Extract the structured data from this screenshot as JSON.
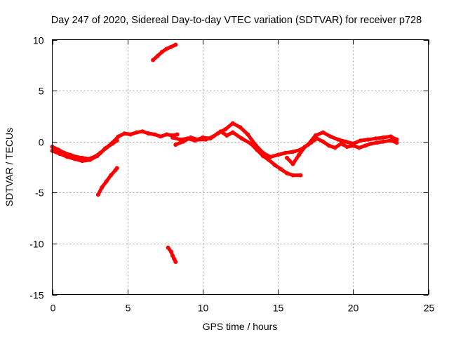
{
  "chart_data": {
    "type": "line",
    "title": "Day 247 of 2020, Sidereal Day-to-day VTEC variation (SDTVAR) for receiver p728",
    "xlabel": "GPS time / hours",
    "ylabel": "SDTVAR / TECUs",
    "xlim": [
      0,
      25
    ],
    "ylim": [
      -15,
      10
    ],
    "xticks": [
      0,
      5,
      10,
      15,
      20,
      25
    ],
    "yticks": [
      -15,
      -10,
      -5,
      0,
      5,
      10
    ],
    "xtick_labels": [
      "0",
      "5",
      "10",
      "15",
      "20",
      "25"
    ],
    "ytick_labels": [
      "-15",
      "-10",
      "-5",
      "0",
      "5",
      "10"
    ],
    "grid": true,
    "legend": "none",
    "color": "#ff0000",
    "series": [
      {
        "name": "main-trace-a",
        "points": [
          [
            0,
            -0.5
          ],
          [
            0.4,
            -0.8
          ],
          [
            0.8,
            -1.1
          ],
          [
            1.2,
            -1.3
          ],
          [
            1.6,
            -1.5
          ],
          [
            2.0,
            -1.6
          ],
          [
            2.4,
            -1.7
          ],
          [
            2.8,
            -1.5
          ],
          [
            3.2,
            -1.1
          ],
          [
            3.6,
            -0.6
          ],
          [
            4.0,
            -0.1
          ],
          [
            4.4,
            0.5
          ],
          [
            4.8,
            0.8
          ],
          [
            5.2,
            0.7
          ],
          [
            5.6,
            0.9
          ],
          [
            6.0,
            1.0
          ],
          [
            6.4,
            0.8
          ],
          [
            6.8,
            0.7
          ],
          [
            7.2,
            0.5
          ],
          [
            7.6,
            0.7
          ],
          [
            8.0,
            0.6
          ],
          [
            8.3,
            0.7
          ]
        ]
      },
      {
        "name": "main-trace-b",
        "points": [
          [
            0,
            -0.9
          ],
          [
            0.5,
            -1.2
          ],
          [
            1.0,
            -1.5
          ],
          [
            1.5,
            -1.7
          ],
          [
            2.0,
            -1.9
          ],
          [
            2.5,
            -1.8
          ],
          [
            3.0,
            -1.4
          ],
          [
            3.5,
            -0.7
          ],
          [
            4.0,
            -0.2
          ],
          [
            4.3,
            0.1
          ]
        ]
      },
      {
        "name": "main-trace-c",
        "points": [
          [
            8.0,
            0.4
          ],
          [
            8.5,
            0.2
          ],
          [
            9.0,
            0.3
          ],
          [
            9.5,
            0.1
          ],
          [
            10.0,
            0.4
          ],
          [
            10.5,
            0.3
          ],
          [
            11.0,
            0.8
          ],
          [
            11.5,
            1.2
          ],
          [
            12.0,
            1.8
          ],
          [
            12.5,
            1.4
          ],
          [
            13.0,
            0.7
          ],
          [
            13.5,
            -0.3
          ],
          [
            14.0,
            -1.1
          ],
          [
            14.5,
            -1.5
          ],
          [
            15.0,
            -1.3
          ],
          [
            15.5,
            -1.1
          ],
          [
            16.0,
            -1.0
          ],
          [
            16.5,
            -0.8
          ],
          [
            17.0,
            -0.3
          ],
          [
            17.5,
            0.6
          ],
          [
            18.0,
            0.9
          ],
          [
            18.5,
            0.5
          ],
          [
            19.0,
            0.2
          ],
          [
            19.5,
            0.0
          ],
          [
            20.0,
            -0.2
          ],
          [
            20.5,
            0.1
          ],
          [
            21.0,
            0.2
          ],
          [
            21.5,
            0.3
          ],
          [
            22.0,
            0.4
          ],
          [
            22.5,
            0.5
          ],
          [
            22.9,
            0.2
          ]
        ]
      },
      {
        "name": "main-trace-d",
        "points": [
          [
            8.2,
            -0.3
          ],
          [
            8.7,
            0.0
          ],
          [
            9.2,
            0.4
          ],
          [
            9.7,
            0.2
          ],
          [
            10.2,
            0.2
          ],
          [
            10.7,
            0.5
          ],
          [
            11.2,
            1.0
          ],
          [
            11.6,
            0.6
          ],
          [
            12.0,
            0.9
          ],
          [
            12.6,
            0.3
          ],
          [
            13.2,
            -0.2
          ],
          [
            13.6,
            -0.8
          ],
          [
            14.0,
            -1.4
          ],
          [
            14.4,
            -1.8
          ],
          [
            14.8,
            -2.3
          ],
          [
            15.2,
            -2.7
          ],
          [
            15.6,
            -3.1
          ],
          [
            16.0,
            -3.3
          ],
          [
            16.5,
            -3.3
          ]
        ]
      },
      {
        "name": "main-trace-e",
        "points": [
          [
            15.6,
            -1.6
          ],
          [
            16.0,
            -2.2
          ],
          [
            16.4,
            -1.3
          ],
          [
            16.8,
            -0.5
          ],
          [
            17.2,
            -0.1
          ],
          [
            17.6,
            0.3
          ],
          [
            18.0,
            0.0
          ],
          [
            18.4,
            -0.4
          ],
          [
            18.8,
            -0.6
          ],
          [
            19.2,
            -0.2
          ],
          [
            19.6,
            -0.5
          ],
          [
            20.0,
            -0.4
          ],
          [
            20.4,
            -0.6
          ],
          [
            20.8,
            -0.4
          ],
          [
            21.2,
            -0.2
          ],
          [
            21.6,
            -0.1
          ],
          [
            22.0,
            0.0
          ],
          [
            22.5,
            0.1
          ],
          [
            22.9,
            -0.1
          ]
        ]
      },
      {
        "name": "arc-upper",
        "points": [
          [
            6.7,
            8.0
          ],
          [
            7.0,
            8.4
          ],
          [
            7.3,
            8.8
          ],
          [
            7.6,
            9.1
          ],
          [
            7.9,
            9.3
          ],
          [
            8.2,
            9.5
          ]
        ]
      },
      {
        "name": "arc-lower-left",
        "points": [
          [
            3.05,
            -5.2
          ],
          [
            3.3,
            -4.5
          ],
          [
            3.6,
            -3.9
          ],
          [
            3.9,
            -3.3
          ],
          [
            4.2,
            -2.8
          ],
          [
            4.3,
            -2.6
          ]
        ]
      },
      {
        "name": "arc-bottom",
        "points": [
          [
            7.7,
            -10.4
          ],
          [
            7.9,
            -10.8
          ],
          [
            8.0,
            -11.2
          ],
          [
            8.1,
            -11.5
          ],
          [
            8.2,
            -11.8
          ]
        ]
      }
    ]
  }
}
